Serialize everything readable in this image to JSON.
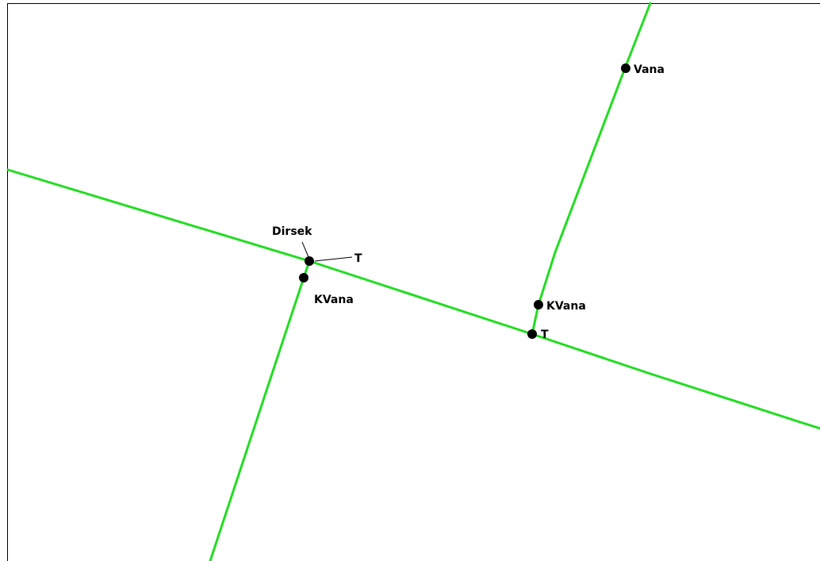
{
  "nodes": [
    {
      "label": "Vana"
    },
    {
      "label": "Dirsek"
    },
    {
      "label": "T"
    },
    {
      "label": "KVana"
    },
    {
      "label": "KVana"
    },
    {
      "label": "T"
    }
  ]
}
